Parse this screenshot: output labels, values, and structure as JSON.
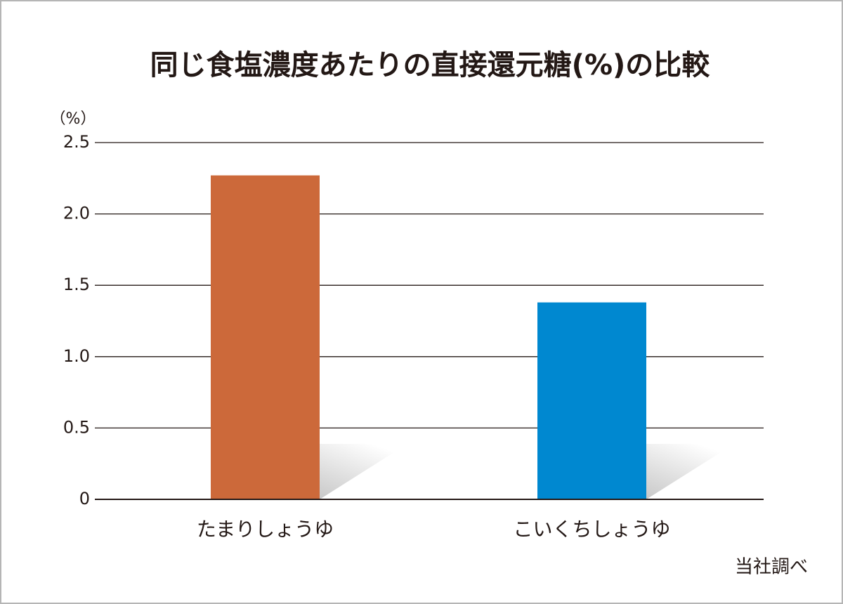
{
  "chart_data": {
    "type": "bar",
    "title": "同じ食塩濃度あたりの直接還元糖(%)の比較",
    "y_unit_label": "（%）",
    "source": "当社調べ",
    "categories": [
      "たまりしょうゆ",
      "こいくちしょうゆ"
    ],
    "values": [
      2.27,
      1.38
    ],
    "colors": [
      "#cc693a",
      "#0088d0"
    ],
    "ylim": [
      0,
      2.5
    ],
    "yticks": [
      0,
      0.5,
      {
        "value": 1,
        "label": "1.0"
      },
      1.5,
      {
        "value": 2,
        "label": "2.0"
      },
      2.5
    ],
    "grid": true
  }
}
